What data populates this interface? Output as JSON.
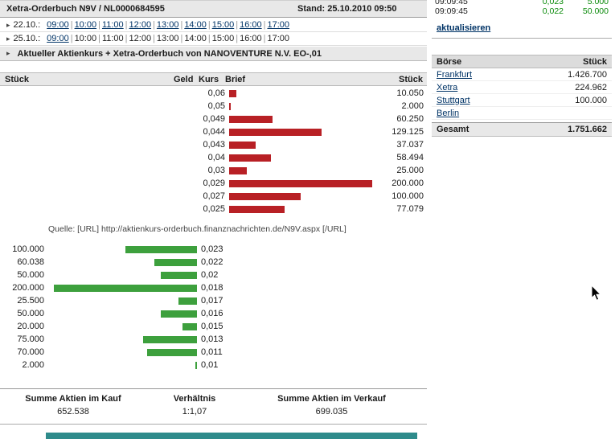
{
  "header": {
    "title": "Xetra-Orderbuch N9V / NL0000684595",
    "stand": "Stand: 25.10.2010 09:50"
  },
  "time_nav": [
    {
      "date": "22.10.:",
      "times": [
        {
          "label": "09:00",
          "link": true
        },
        {
          "label": "10:00",
          "link": true
        },
        {
          "label": "11:00",
          "link": true
        },
        {
          "label": "12:00",
          "link": true
        },
        {
          "label": "13:00",
          "link": true
        },
        {
          "label": "14:00",
          "link": true
        },
        {
          "label": "15:00",
          "link": true
        },
        {
          "label": "16:00",
          "link": true
        },
        {
          "label": "17:00",
          "link": true
        }
      ]
    },
    {
      "date": "25.10.:",
      "times": [
        {
          "label": "09:00",
          "link": true
        },
        {
          "label": "10:00",
          "link": false
        },
        {
          "label": "11:00",
          "link": false
        },
        {
          "label": "12:00",
          "link": false
        },
        {
          "label": "13:00",
          "link": false
        },
        {
          "label": "14:00",
          "link": false
        },
        {
          "label": "15:00",
          "link": false
        },
        {
          "label": "16:00",
          "link": false
        },
        {
          "label": "17:00",
          "link": false
        }
      ]
    }
  ],
  "section_title": "Aktueller Aktienkurs + Xetra-Orderbuch von NANOVENTURE N.V. EO-,01",
  "orderbook": {
    "columns": {
      "stueck_left": "Stück",
      "geld": "Geld",
      "kurs": "Kurs",
      "brief": "Brief",
      "stueck_right": "Stück"
    },
    "ask": [
      {
        "price": "0,06",
        "volume": "10.050",
        "shares": 10050
      },
      {
        "price": "0,05",
        "volume": "2.000",
        "shares": 2000
      },
      {
        "price": "0,049",
        "volume": "60.250",
        "shares": 60250
      },
      {
        "price": "0,044",
        "volume": "129.125",
        "shares": 129125
      },
      {
        "price": "0,043",
        "volume": "37.037",
        "shares": 37037
      },
      {
        "price": "0,04",
        "volume": "58.494",
        "shares": 58494
      },
      {
        "price": "0,03",
        "volume": "25.000",
        "shares": 25000
      },
      {
        "price": "0,029",
        "volume": "200.000",
        "shares": 200000
      },
      {
        "price": "0,027",
        "volume": "100.000",
        "shares": 100000
      },
      {
        "price": "0,025",
        "volume": "77.079",
        "shares": 77079
      }
    ],
    "bid": [
      {
        "volume": "100.000",
        "shares": 100000,
        "price": "0,023"
      },
      {
        "volume": "60.038",
        "shares": 60038,
        "price": "0,022"
      },
      {
        "volume": "50.000",
        "shares": 50000,
        "price": "0,02"
      },
      {
        "volume": "200.000",
        "shares": 200000,
        "price": "0,018"
      },
      {
        "volume": "25.500",
        "shares": 25500,
        "price": "0,017"
      },
      {
        "volume": "50.000",
        "shares": 50000,
        "price": "0,016"
      },
      {
        "volume": "20.000",
        "shares": 20000,
        "price": "0,015"
      },
      {
        "volume": "75.000",
        "shares": 75000,
        "price": "0,013"
      },
      {
        "volume": "70.000",
        "shares": 70000,
        "price": "0,011"
      },
      {
        "volume": "2.000",
        "shares": 2000,
        "price": "0,01"
      }
    ]
  },
  "source_line": "Quelle: [URL] http://aktienkurs-orderbuch.finanznachrichten.de/N9V.aspx [/URL]",
  "summary": {
    "kauf_label": "Summe Aktien im Kauf",
    "kauf_value": "652.538",
    "ratio_label": "Verhältnis",
    "ratio_value": "1:1,07",
    "verkauf_label": "Summe Aktien im Verkauf",
    "verkauf_value": "699.035"
  },
  "sidebar": {
    "trades": [
      {
        "time": "09:09:45",
        "price": "0,023",
        "volume": "5.000"
      },
      {
        "time": "09:09:45",
        "price": "0,022",
        "volume": "50.000"
      }
    ],
    "refresh_label": "aktualisieren",
    "exchanges": {
      "col_boerse": "Börse",
      "col_stueck": "Stück",
      "rows": [
        {
          "name": "Frankfurt",
          "value": "1.426.700"
        },
        {
          "name": "Xetra",
          "value": "224.962"
        },
        {
          "name": "Stuttgart",
          "value": "100.000"
        },
        {
          "name": "Berlin",
          "value": ""
        }
      ],
      "total_label": "Gesamt",
      "total_value": "1.751.662"
    }
  },
  "colors": {
    "ask_bar": "#b82025",
    "bid_bar": "#3da03d",
    "link": "#003366",
    "accent_bar": "#2e8b8b"
  }
}
